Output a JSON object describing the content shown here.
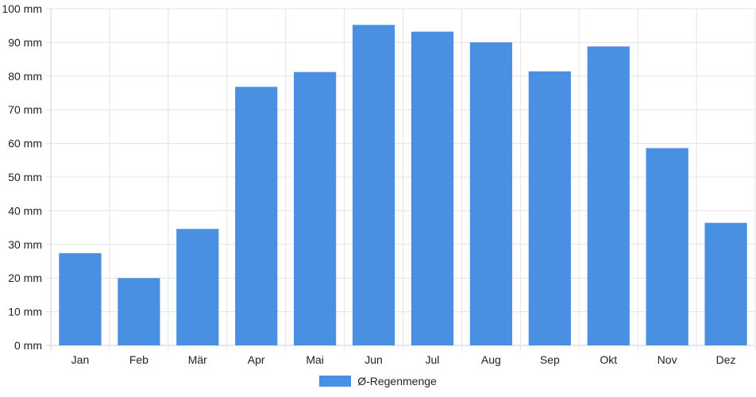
{
  "chart_data": {
    "type": "bar",
    "categories": [
      "Jan",
      "Feb",
      "Mär",
      "Apr",
      "Mai",
      "Jun",
      "Jul",
      "Aug",
      "Sep",
      "Okt",
      "Nov",
      "Dez"
    ],
    "series": [
      {
        "name": "Ø-Regenmenge",
        "values": [
          27.4,
          20.0,
          34.6,
          76.8,
          81.2,
          95.2,
          93.2,
          90.0,
          81.4,
          88.8,
          58.6,
          36.4
        ],
        "color": "#4a90e2"
      }
    ],
    "yticks": [
      "0 mm",
      "10 mm",
      "20 mm",
      "30 mm",
      "40 mm",
      "50 mm",
      "60 mm",
      "70 mm",
      "80 mm",
      "90 mm",
      "100 mm"
    ],
    "ylim": [
      0,
      100
    ],
    "grid": true,
    "legend_position": "bottom"
  }
}
